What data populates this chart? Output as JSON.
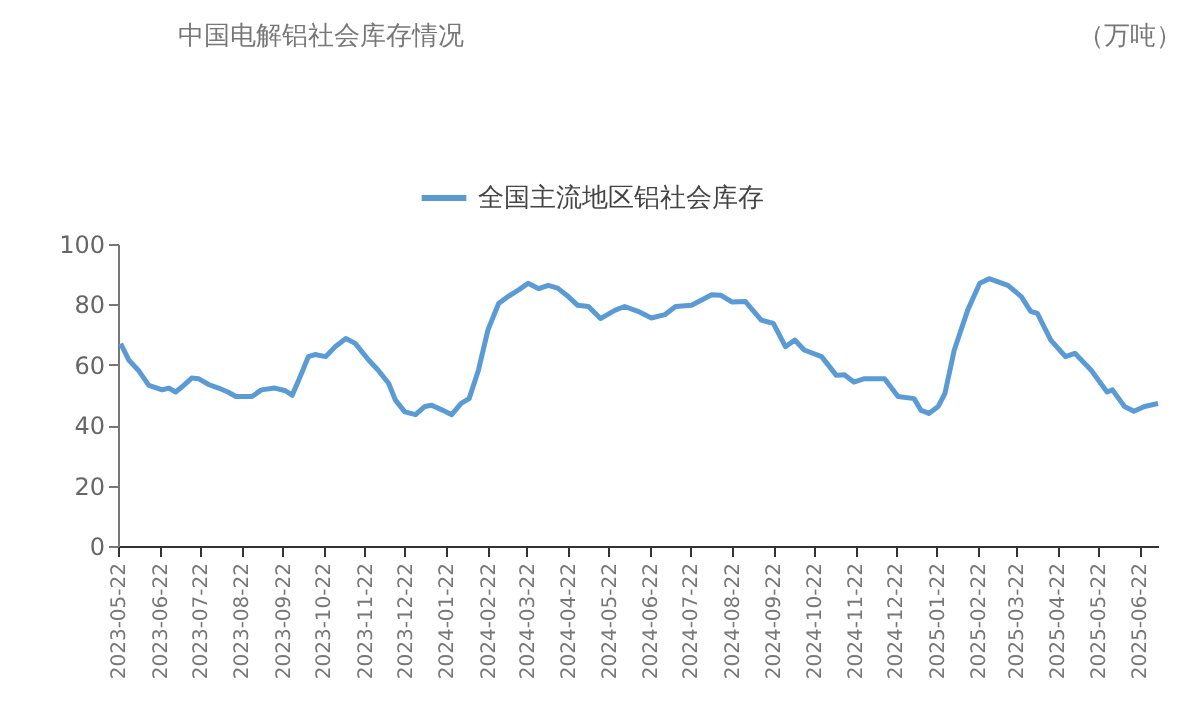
{
  "chart_data": {
    "type": "line",
    "title": "中国电解铝社会库存情况",
    "annotations": [
      "（万吨）"
    ],
    "x": [
      "2023-05-24",
      "2023-05-30",
      "2023-06-06",
      "2023-06-14",
      "2023-06-24",
      "2023-06-29",
      "2023-07-04",
      "2023-07-09",
      "2023-07-16",
      "2023-07-21",
      "2023-07-29",
      "2023-08-05",
      "2023-08-12",
      "2023-08-18",
      "2023-08-30",
      "2023-09-06",
      "2023-09-16",
      "2023-09-24",
      "2023-09-29",
      "2023-10-06",
      "2023-10-11",
      "2023-10-16",
      "2023-10-24",
      "2023-10-31",
      "2023-11-08",
      "2023-11-15",
      "2023-11-25",
      "2023-12-02",
      "2023-12-10",
      "2023-12-15",
      "2023-12-22",
      "2023-12-30",
      "2024-01-06",
      "2024-01-11",
      "2024-01-19",
      "2024-01-26",
      "2024-02-02",
      "2024-02-08",
      "2024-02-15",
      "2024-02-22",
      "2024-03-01",
      "2024-03-08",
      "2024-03-16",
      "2024-03-23",
      "2024-03-31",
      "2024-04-07",
      "2024-04-14",
      "2024-04-22",
      "2024-04-29",
      "2024-05-07",
      "2024-05-16",
      "2024-05-27",
      "2024-06-03",
      "2024-06-13",
      "2024-06-23",
      "2024-07-03",
      "2024-07-11",
      "2024-07-23",
      "2024-08-07",
      "2024-08-14",
      "2024-08-22",
      "2024-09-01",
      "2024-09-13",
      "2024-09-22",
      "2024-10-01",
      "2024-10-08",
      "2024-10-15",
      "2024-10-28",
      "2024-11-08",
      "2024-11-14",
      "2024-11-21",
      "2024-11-29",
      "2024-12-14",
      "2024-12-24",
      "2025-01-05",
      "2025-01-10",
      "2025-01-16",
      "2025-01-23",
      "2025-01-28",
      "2025-02-04",
      "2025-02-14",
      "2025-02-23",
      "2025-03-02",
      "2025-03-16",
      "2025-03-26",
      "2025-04-02",
      "2025-04-07",
      "2025-04-17",
      "2025-04-28",
      "2025-05-05",
      "2025-05-17",
      "2025-05-29",
      "2025-06-02",
      "2025-06-11",
      "2025-06-18",
      "2025-06-26",
      "2025-07-06"
    ],
    "series": [
      {
        "name": "全国主流地区铝社会库存",
        "color": "#5b9bd5",
        "values": [
          67,
          61.6,
          58.3,
          53.2,
          51.7,
          52.3,
          51,
          52.8,
          55.6,
          55.4,
          53.4,
          52.3,
          51,
          49.5,
          49.5,
          51.7,
          52.3,
          51.4,
          49.9,
          57.2,
          62.7,
          63.4,
          62.7,
          66,
          68.7,
          67.1,
          61.6,
          58.3,
          53.8,
          48.3,
          44.4,
          43.5,
          46.2,
          46.6,
          45,
          43.5,
          47.2,
          48.8,
          58.3,
          71.5,
          80.3,
          82.6,
          84.8,
          87,
          85.2,
          86.3,
          85.4,
          82.6,
          79.7,
          79.3,
          75.3,
          78.1,
          79.3,
          77.7,
          75.5,
          76.6,
          79.3,
          79.7,
          83.2,
          83,
          80.8,
          81,
          74.8,
          73.7,
          66,
          68.2,
          64.9,
          62.7,
          56.5,
          56.7,
          54.3,
          55.4,
          55.4,
          49.5,
          48.8,
          45,
          43.9,
          46.2,
          50.5,
          64.9,
          78.1,
          87,
          88.5,
          86.3,
          82.6,
          77.7,
          77,
          68.2,
          62.7,
          63.8,
          58.3,
          51,
          51.7,
          46.2,
          44.6,
          46.2,
          47.2
        ]
      }
    ],
    "xlim": [
      "2023-05-22",
      "2025-07-06"
    ],
    "xticks": [
      "2023-05-22",
      "2023-06-22",
      "2023-07-22",
      "2023-08-22",
      "2023-09-22",
      "2023-10-22",
      "2023-11-22",
      "2023-12-22",
      "2024-01-22",
      "2024-02-22",
      "2024-03-22",
      "2024-04-22",
      "2024-05-22",
      "2024-06-22",
      "2024-07-22",
      "2024-08-22",
      "2024-09-22",
      "2024-10-22",
      "2024-11-22",
      "2024-12-22",
      "2025-01-22",
      "2025-02-22",
      "2025-03-22",
      "2025-04-22",
      "2025-05-22",
      "2025-06-22"
    ],
    "ylim": [
      0,
      100
    ],
    "yticks": [
      0,
      20,
      40,
      60,
      80,
      100
    ],
    "grid": false,
    "legend": "top",
    "marker": "none",
    "line_style": "solid"
  }
}
